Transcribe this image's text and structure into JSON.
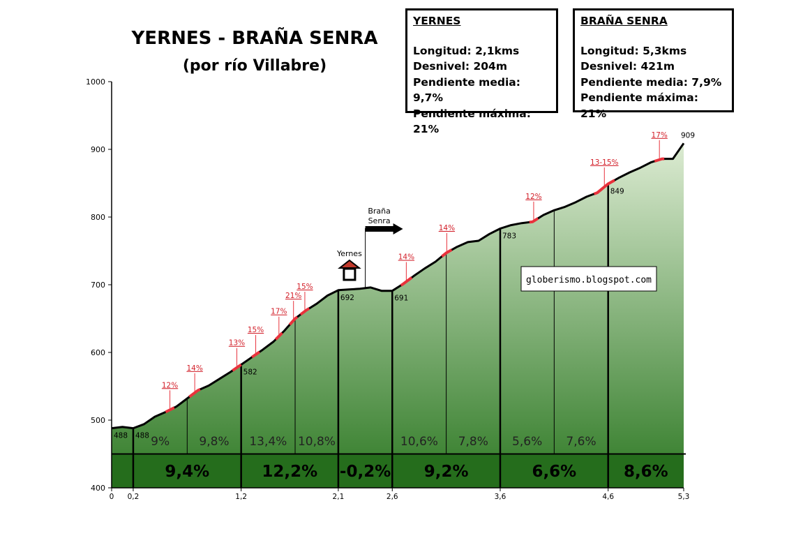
{
  "title": "YERNES - BRAÑA SENRA",
  "subtitle": "(por río Villabre)",
  "info_boxes": [
    {
      "title": "YERNES",
      "lines": [
        "Longitud: 2,1kms",
        "Desnivel: 204m",
        "Pendiente media: 9,7%",
        "Pendiente máxima: 21%"
      ]
    },
    {
      "title": "BRAÑA SENRA",
      "lines": [
        "Longitud: 5,3kms",
        "Desnivel: 421m",
        "Pendiente media: 7,9%",
        "Pendiente máxima: 21%"
      ]
    }
  ],
  "watermark": "globerismo.blogspot.com",
  "colors": {
    "fill_top": "#dcebd2",
    "fill_bottom": "#2f7a25",
    "band": "#256d1c",
    "steep": "#e8323c",
    "label_red": "#d21e28"
  },
  "chart_data": {
    "type": "area",
    "title": "YERNES - BRAÑA SENRA",
    "subtitle": "(por río Villabre)",
    "xlim": [
      0,
      5.3
    ],
    "ylim": [
      400,
      1000
    ],
    "y_ticks": [
      400,
      500,
      600,
      700,
      800,
      900,
      1000
    ],
    "x_ticks": [
      {
        "x": 0,
        "label": "0"
      },
      {
        "x": 0.2,
        "label": "0,2"
      },
      {
        "x": 1.2,
        "label": "1,2"
      },
      {
        "x": 2.1,
        "label": "2,1"
      },
      {
        "x": 2.6,
        "label": "2,6"
      },
      {
        "x": 3.6,
        "label": "3,6"
      },
      {
        "x": 4.6,
        "label": "4,6"
      },
      {
        "x": 5.3,
        "label": "5,3"
      }
    ],
    "profile": {
      "x": [
        0,
        0.1,
        0.2,
        0.3,
        0.4,
        0.5,
        0.6,
        0.7,
        0.8,
        0.9,
        1.0,
        1.1,
        1.2,
        1.3,
        1.4,
        1.5,
        1.6,
        1.7,
        1.8,
        1.9,
        2.0,
        2.1,
        2.2,
        2.3,
        2.4,
        2.5,
        2.6,
        2.7,
        2.8,
        2.9,
        3.0,
        3.1,
        3.2,
        3.3,
        3.4,
        3.5,
        3.6,
        3.7,
        3.8,
        3.9,
        4.0,
        4.1,
        4.2,
        4.3,
        4.4,
        4.5,
        4.6,
        4.7,
        4.8,
        4.9,
        5.0,
        5.1,
        5.2,
        5.3
      ],
      "y": [
        488,
        490,
        488,
        494,
        505,
        512,
        520,
        532,
        544,
        551,
        561,
        571,
        582,
        593,
        604,
        616,
        632,
        650,
        662,
        672,
        684,
        692,
        693,
        694,
        696,
        691,
        691,
        701,
        713,
        724,
        734,
        747,
        756,
        763,
        765,
        775,
        783,
        788,
        791,
        793,
        803,
        810,
        815,
        822,
        830,
        836,
        849,
        858,
        866,
        873,
        881,
        886,
        886,
        909
      ]
    },
    "point_labels": [
      {
        "x": 0,
        "y": 488,
        "label": "488"
      },
      {
        "x": 0.2,
        "y": 488,
        "label": "488"
      },
      {
        "x": 1.2,
        "y": 582,
        "label": "582"
      },
      {
        "x": 2.1,
        "y": 692,
        "label": "692"
      },
      {
        "x": 2.6,
        "y": 691,
        "label": "691"
      },
      {
        "x": 3.6,
        "y": 783,
        "label": "783"
      },
      {
        "x": 4.6,
        "y": 849,
        "label": "849"
      },
      {
        "x": 5.3,
        "y": 909,
        "label": "909"
      }
    ],
    "major_dividers": [
      0.2,
      1.2,
      2.1,
      2.6,
      3.6,
      4.6
    ],
    "minor_dividers": [
      0.7,
      1.7,
      3.1,
      4.1
    ],
    "sub_segments": [
      {
        "from": 0.2,
        "to": 0.7,
        "label": "9%"
      },
      {
        "from": 0.7,
        "to": 1.2,
        "label": "9,8%"
      },
      {
        "from": 1.2,
        "to": 1.7,
        "label": "13,4%"
      },
      {
        "from": 1.7,
        "to": 2.1,
        "label": "10,8%"
      },
      {
        "from": 2.6,
        "to": 3.1,
        "label": "10,6%"
      },
      {
        "from": 3.1,
        "to": 3.6,
        "label": "7,8%"
      },
      {
        "from": 3.6,
        "to": 4.1,
        "label": "5,6%"
      },
      {
        "from": 4.1,
        "to": 4.6,
        "label": "7,6%"
      }
    ],
    "km_segments": [
      {
        "from": 0.2,
        "to": 1.2,
        "label": "9,4%"
      },
      {
        "from": 1.2,
        "to": 2.1,
        "label": "12,2%"
      },
      {
        "from": 2.1,
        "to": 2.6,
        "label": "-0,2%"
      },
      {
        "from": 2.6,
        "to": 3.6,
        "label": "9,2%"
      },
      {
        "from": 3.6,
        "to": 4.6,
        "label": "6,6%"
      },
      {
        "from": 4.6,
        "to": 5.3,
        "label": "8,6%"
      }
    ],
    "band_elevation": 450,
    "steep_sections": [
      {
        "from": 0.5,
        "to": 0.58,
        "label": "12%"
      },
      {
        "from": 0.72,
        "to": 0.82,
        "label": "14%"
      },
      {
        "from": 1.12,
        "to": 1.2,
        "label": "13%"
      },
      {
        "from": 1.3,
        "to": 1.37,
        "label": "15%"
      },
      {
        "from": 1.52,
        "to": 1.58,
        "label": "17%"
      },
      {
        "from": 1.65,
        "to": 1.72,
        "label": "21%"
      },
      {
        "from": 1.75,
        "to": 1.83,
        "label": "15%"
      },
      {
        "from": 2.68,
        "to": 2.78,
        "label": "14%"
      },
      {
        "from": 3.06,
        "to": 3.15,
        "label": "14%"
      },
      {
        "from": 3.87,
        "to": 3.95,
        "label": "12%"
      },
      {
        "from": 4.47,
        "to": 4.66,
        "label": "13-15%"
      },
      {
        "from": 5.03,
        "to": 5.12,
        "label": "17%"
      }
    ],
    "landmarks": [
      {
        "name": "Yernes",
        "type": "village",
        "x": 2.1,
        "y": 692
      },
      {
        "name": "Braña Senra",
        "type": "turnoff",
        "x": 2.35,
        "y": 695
      }
    ]
  }
}
